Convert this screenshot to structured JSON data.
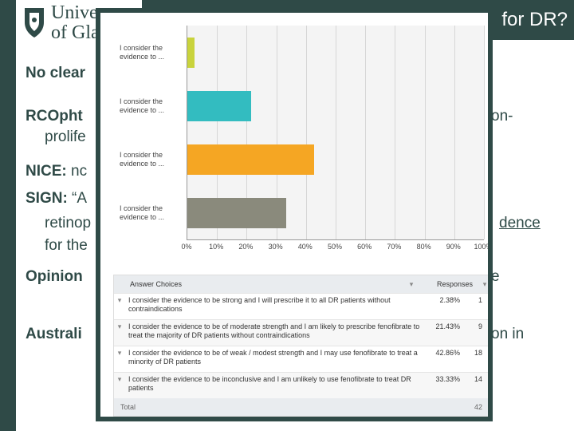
{
  "header": {
    "uni_line1": "Univer",
    "uni_line2": "of Glas",
    "title": "for DR?"
  },
  "colors": {
    "primary": "#2f4a47",
    "bar_strong": "#c9d33c",
    "bar_likely": "#33bcc0",
    "bar_weak": "#f5a623",
    "bar_inconclusive": "#8a8a7c"
  },
  "slide": {
    "line1": "No clear",
    "line2_bold": "RCOpht",
    "line2_rest": "on-",
    "line3": "prolife",
    "line4_bold": "NICE:",
    "line4_rest": " nc",
    "line5_bold": "SIGN:",
    "line5_rest": " “A",
    "line6_left": "retinop",
    "line6_right": "dence",
    "line7": "for the",
    "line8_bold": "Opinion",
    "line8_right": "e",
    "line9_bold": "Australi",
    "line9_right": "on in"
  },
  "chart_data": {
    "type": "bar",
    "orientation": "horizontal",
    "categories": [
      "I consider the evidence to ...",
      "I consider the evidence to ...",
      "I consider the evidence to ...",
      "I consider the evidence to ..."
    ],
    "values": [
      2.38,
      21.43,
      42.86,
      33.33
    ],
    "xlim": [
      0,
      100
    ],
    "xticks": [
      "0%",
      "10%",
      "20%",
      "30%",
      "40%",
      "50%",
      "60%",
      "70%",
      "80%",
      "90%",
      "100%"
    ],
    "grid": true
  },
  "table": {
    "header_choice": "Answer Choices",
    "header_response": "Responses",
    "rows": [
      {
        "choice": "I consider the evidence to be strong and I will prescribe it to all DR patients without contraindications",
        "pct": "2.38%",
        "count": "1"
      },
      {
        "choice": "I consider the evidence to be of moderate strength and I am likely to prescribe fenofibrate to treat the majority of DR patients without contraindications",
        "pct": "21.43%",
        "count": "9"
      },
      {
        "choice": "I consider the evidence to be of weak / modest strength and I may use fenofibrate to treat a minority of DR patients",
        "pct": "42.86%",
        "count": "18"
      },
      {
        "choice": "I consider the evidence to be inconclusive and I am unlikely to use fenofibrate to treat DR patients",
        "pct": "33.33%",
        "count": "14"
      }
    ],
    "total_label": "Total",
    "total_count": "42"
  }
}
